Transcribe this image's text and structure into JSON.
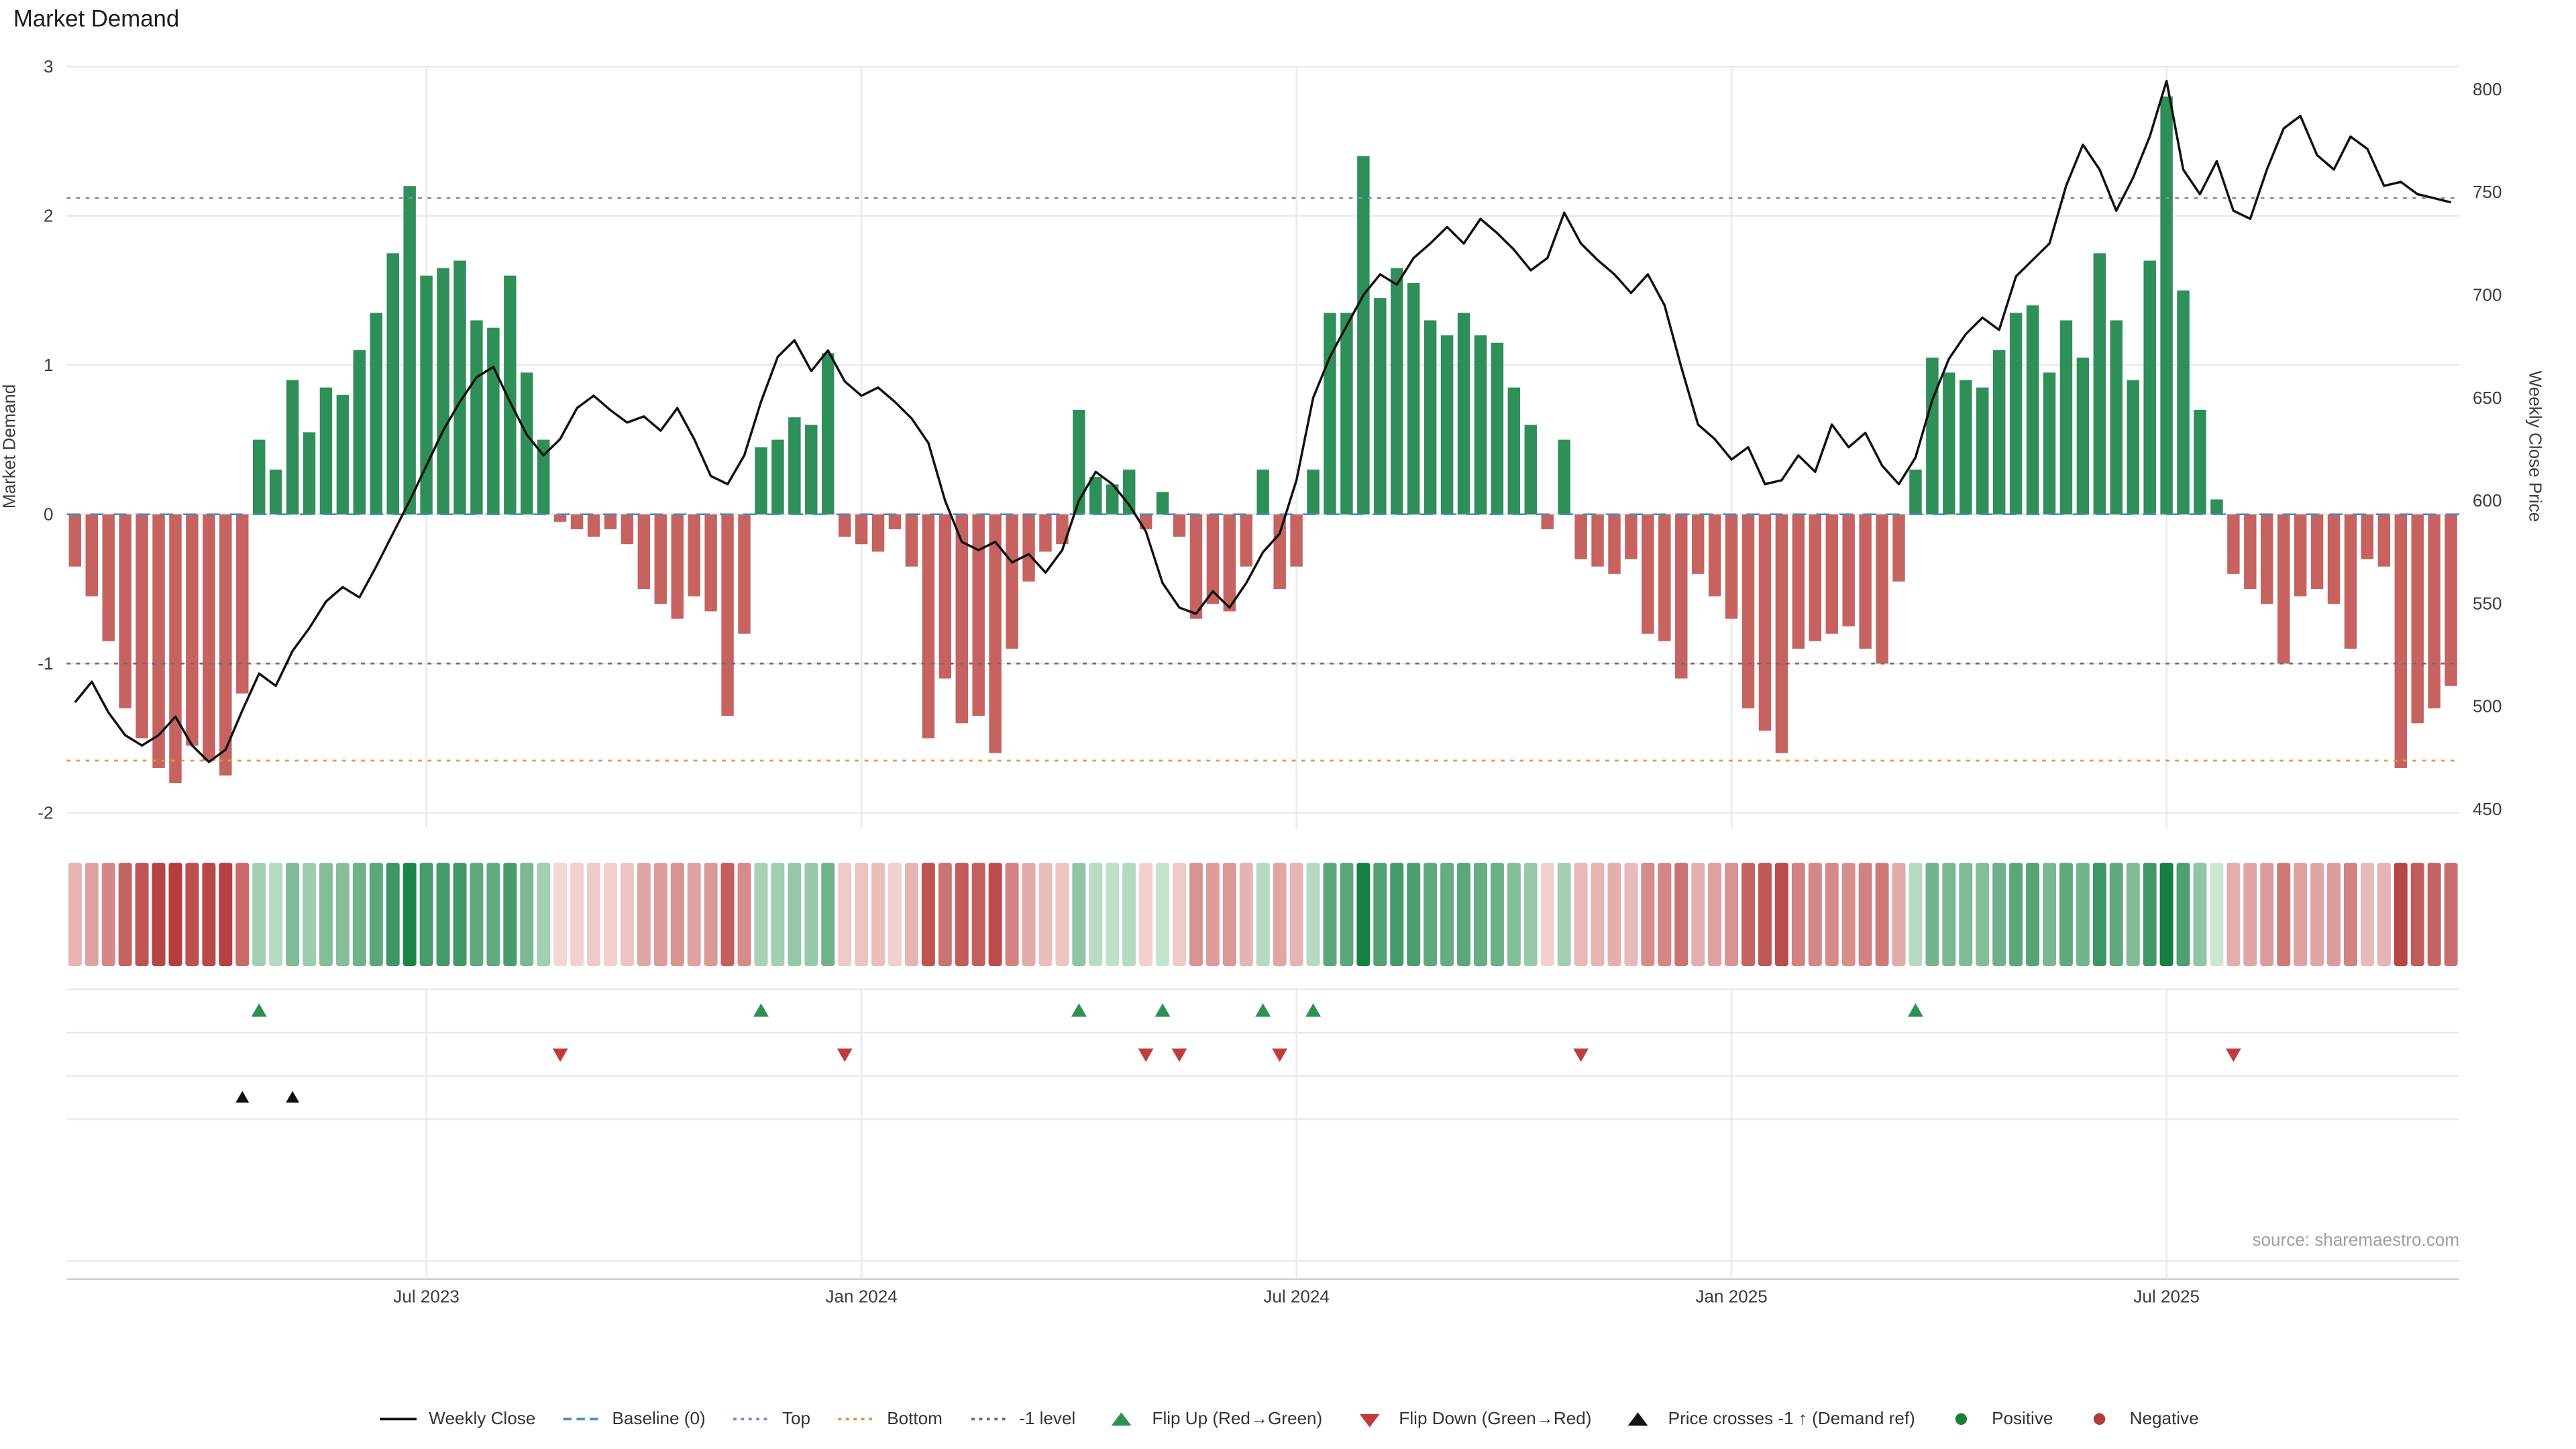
{
  "title": "Market Demand",
  "source": "source: sharemaestro.com",
  "colors": {
    "positive_bar": "#2e8f58",
    "negative_bar": "#c66360",
    "price_line": "#111111",
    "baseline": "#4c8cbf",
    "top_line": "#8585cc",
    "bottom_line": "#e09a3e",
    "minus1_line": "#6e6e6e",
    "flip_up": "#2d9150",
    "flip_down": "#c23b3b",
    "price_cross": "#111111",
    "grid": "#e9e9e9",
    "axis_line": "#cfcfcf",
    "heat_green_low": "#dcefe0",
    "heat_green_high": "#168044",
    "heat_red_low": "#f7e0de",
    "heat_red_high": "#b33636"
  },
  "legend": {
    "items": [
      {
        "label": "Weekly Close",
        "swatch": "line",
        "color": "#111111"
      },
      {
        "label": "Baseline (0)",
        "swatch": "dash",
        "color": "#4c8cbf"
      },
      {
        "label": "Top",
        "swatch": "dot-line",
        "color": "#8585cc"
      },
      {
        "label": "Bottom",
        "swatch": "dot-line",
        "color": "#e09a3e"
      },
      {
        "label": "-1 level",
        "swatch": "dot-line",
        "color": "#6e6e6e"
      },
      {
        "label": "Flip Up (Red→Green)",
        "swatch": "triangle-up",
        "color": "#2d9150"
      },
      {
        "label": "Flip Down (Green→Red)",
        "swatch": "triangle-down",
        "color": "#c23b3b"
      },
      {
        "label": "Price crosses -1 ↑ (Demand ref)",
        "swatch": "triangle-up",
        "color": "#111111"
      },
      {
        "label": "Positive",
        "swatch": "dot",
        "color": "#1e7d3c"
      },
      {
        "label": "Negative",
        "swatch": "dot",
        "color": "#b03a3a"
      }
    ]
  },
  "chart_data": {
    "type": "bar+line",
    "title": "Market Demand",
    "grid": true,
    "legend_position": "bottom",
    "x_axis": {
      "tick_labels": [
        "Jul 2023",
        "Jan 2024",
        "Jul 2024",
        "Jan 2025",
        "Jul 2025"
      ],
      "tick_weeks": [
        21,
        47,
        73,
        99,
        125
      ]
    },
    "left_axis": {
      "label": "Market Demand",
      "ticks": [
        3,
        2,
        1,
        0,
        -1,
        -2
      ],
      "range": [
        -2.1,
        3.0
      ]
    },
    "right_axis": {
      "label": "Weekly Close Price",
      "ticks": [
        800,
        750,
        700,
        650,
        600,
        550,
        500,
        450
      ],
      "range": [
        441,
        811
      ]
    },
    "series": [
      {
        "name": "Market Demand",
        "type": "bar",
        "axis": "left",
        "values": [
          -0.35,
          -0.55,
          -0.85,
          -1.3,
          -1.5,
          -1.7,
          -1.8,
          -1.55,
          -1.65,
          -1.75,
          -1.2,
          0.5,
          0.3,
          0.9,
          0.55,
          0.85,
          0.8,
          1.1,
          1.35,
          1.75,
          2.2,
          1.6,
          1.65,
          1.7,
          1.3,
          1.25,
          1.6,
          0.95,
          0.5,
          -0.05,
          -0.1,
          -0.15,
          -0.1,
          -0.2,
          -0.5,
          -0.6,
          -0.7,
          -0.55,
          -0.65,
          -1.35,
          -0.8,
          0.45,
          0.5,
          0.65,
          0.6,
          1.08,
          -0.15,
          -0.2,
          -0.25,
          -0.1,
          -0.35,
          -1.5,
          -1.1,
          -1.4,
          -1.35,
          -1.6,
          -0.9,
          -0.45,
          -0.25,
          -0.2,
          0.7,
          0.25,
          0.2,
          0.3,
          -0.1,
          0.15,
          -0.15,
          -0.7,
          -0.6,
          -0.65,
          -0.35,
          0.3,
          -0.5,
          -0.35,
          0.3,
          1.35,
          1.35,
          2.4,
          1.45,
          1.65,
          1.55,
          1.3,
          1.2,
          1.35,
          1.2,
          1.15,
          0.85,
          0.6,
          -0.1,
          0.5,
          -0.3,
          -0.35,
          -0.4,
          -0.3,
          -0.8,
          -0.85,
          -1.1,
          -0.4,
          -0.55,
          -0.7,
          -1.3,
          -1.45,
          -1.6,
          -0.9,
          -0.85,
          -0.8,
          -0.75,
          -0.9,
          -1.0,
          -0.45,
          0.3,
          1.05,
          0.95,
          0.9,
          0.85,
          1.1,
          1.35,
          1.4,
          0.95,
          1.3,
          1.05,
          1.75,
          1.3,
          0.9,
          1.7,
          2.8,
          1.5,
          0.7,
          0.1,
          -0.4,
          -0.5,
          -0.6,
          -1.0,
          -0.55,
          -0.5,
          -0.6,
          -0.9,
          -0.3,
          -0.35,
          -1.7,
          -1.4,
          -1.3,
          -1.15
        ]
      },
      {
        "name": "Weekly Close",
        "type": "line",
        "axis": "right",
        "values": [
          502,
          512,
          497,
          486,
          481,
          486,
          495,
          481,
          473,
          479,
          498,
          516,
          510,
          527,
          538,
          551,
          558,
          553,
          568,
          584,
          600,
          617,
          634,
          648,
          660,
          665,
          648,
          632,
          622,
          630,
          645,
          651,
          644,
          638,
          641,
          634,
          645,
          630,
          612,
          608,
          622,
          648,
          670,
          678,
          663,
          673,
          658,
          651,
          655,
          648,
          640,
          628,
          600,
          580,
          576,
          580,
          570,
          574,
          565,
          576,
          600,
          614,
          608,
          598,
          585,
          560,
          548,
          545,
          556,
          548,
          560,
          575,
          584,
          610,
          650,
          670,
          685,
          700,
          710,
          705,
          718,
          725,
          733,
          725,
          737,
          730,
          722,
          712,
          718,
          740,
          725,
          717,
          710,
          701,
          710,
          695,
          665,
          637,
          630,
          620,
          626,
          608,
          610,
          622,
          614,
          637,
          626,
          633,
          617,
          608,
          621,
          649,
          669,
          681,
          689,
          683,
          709,
          717,
          725,
          753,
          773,
          761,
          741,
          757,
          777,
          804,
          761,
          749,
          765,
          741,
          737,
          761,
          781,
          787,
          768,
          761,
          777,
          771,
          753,
          755,
          749,
          747,
          745
        ]
      }
    ],
    "reference_lines": [
      {
        "name": "Baseline (0)",
        "value": 0,
        "style": "dashed",
        "color": "#4c8cbf"
      },
      {
        "name": "Top",
        "value": 2.12,
        "style": "dotted",
        "color": "#8585cc"
      },
      {
        "name": "Bottom",
        "value": -1.65,
        "style": "dotted",
        "color": "#e09a3e"
      },
      {
        "name": "-1 level",
        "value": -1,
        "style": "dotted",
        "color": "#6e6e6e"
      }
    ],
    "markers": {
      "flip_up_weeks": [
        11,
        41,
        60,
        65,
        71,
        74,
        110
      ],
      "flip_down_weeks": [
        29,
        46,
        64,
        66,
        72,
        90,
        129
      ],
      "price_cross_weeks": [
        10,
        13
      ]
    }
  }
}
